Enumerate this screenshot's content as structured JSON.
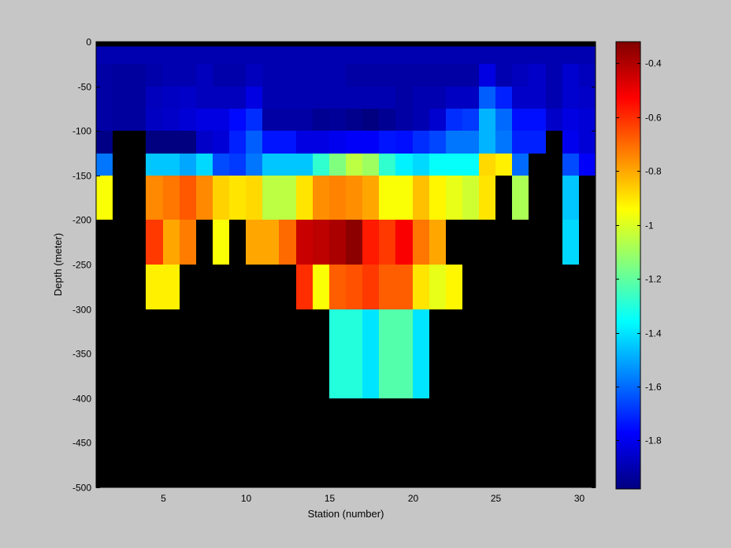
{
  "chart_data": [
    {
      "type": "heatmap",
      "title": "",
      "xlabel": "Station (number)",
      "ylabel": "Depth (meter)",
      "xlim": [
        1,
        31
      ],
      "ylim": [
        -500,
        0
      ],
      "xticks": [
        5,
        10,
        15,
        20,
        25,
        30
      ],
      "yticks": [
        0,
        -50,
        -100,
        -150,
        -200,
        -250,
        -300,
        -350,
        -400,
        -450,
        -500
      ],
      "x_start": 1,
      "x_step": 1,
      "depth_bins": [
        [
          0,
          -5
        ],
        [
          -5,
          -25
        ],
        [
          -25,
          -50
        ],
        [
          -50,
          -75
        ],
        [
          -75,
          -100
        ],
        [
          -100,
          -125
        ],
        [
          -125,
          -150
        ],
        [
          -150,
          -200
        ],
        [
          -200,
          -250
        ],
        [
          -250,
          -300
        ],
        [
          -300,
          -400
        ],
        [
          -400,
          -500
        ]
      ],
      "nodata_color": "#000000",
      "colorbar": {
        "colormap": "jet",
        "range": [
          -1.98,
          -0.32
        ],
        "ticks": [
          -0.4,
          -0.6,
          -0.8,
          -1,
          -1.2,
          -1.4,
          -1.6,
          -1.8
        ]
      },
      "values": [
        [
          null,
          null,
          null,
          null,
          null,
          null,
          null,
          null,
          null,
          null,
          null,
          null,
          null,
          null,
          null,
          null,
          null,
          null,
          null,
          null,
          null,
          null,
          null,
          null,
          null,
          null,
          null,
          null,
          null,
          null
        ],
        [
          -1.9,
          -1.9,
          -1.9,
          -1.9,
          -1.9,
          -1.9,
          -1.9,
          -1.9,
          -1.9,
          -1.9,
          -1.9,
          -1.9,
          -1.9,
          -1.9,
          -1.9,
          -1.9,
          -1.9,
          -1.9,
          -1.9,
          -1.9,
          -1.9,
          -1.9,
          -1.9,
          -1.9,
          -1.9,
          -1.9,
          -1.9,
          -1.9,
          -1.9,
          -1.9
        ],
        [
          -1.92,
          -1.93,
          -1.93,
          -1.91,
          -1.9,
          -1.9,
          -1.88,
          -1.91,
          -1.91,
          -1.88,
          -1.9,
          -1.9,
          -1.9,
          -1.9,
          -1.9,
          -1.92,
          -1.92,
          -1.92,
          -1.92,
          -1.92,
          -1.92,
          -1.92,
          -1.92,
          -1.82,
          -1.9,
          -1.88,
          -1.86,
          -1.9,
          -1.85,
          -1.88
        ],
        [
          -1.92,
          -1.93,
          -1.93,
          -1.88,
          -1.87,
          -1.86,
          -1.88,
          -1.88,
          -1.88,
          -1.82,
          -1.9,
          -1.9,
          -1.9,
          -1.9,
          -1.9,
          -1.9,
          -1.9,
          -1.9,
          -1.92,
          -1.9,
          -1.9,
          -1.87,
          -1.87,
          -1.62,
          -1.72,
          -1.86,
          -1.86,
          -1.9,
          -1.85,
          -1.86
        ],
        [
          -1.92,
          -1.93,
          -1.93,
          -1.87,
          -1.86,
          -1.84,
          -1.82,
          -1.82,
          -1.76,
          -1.7,
          -1.92,
          -1.92,
          -1.92,
          -1.95,
          -1.94,
          -1.96,
          -1.98,
          -1.95,
          -1.92,
          -1.9,
          -1.85,
          -1.7,
          -1.68,
          -1.48,
          -1.6,
          -1.75,
          -1.75,
          -1.86,
          -1.82,
          -1.84
        ],
        [
          -1.97,
          null,
          null,
          -1.98,
          -1.98,
          -1.98,
          -1.86,
          -1.84,
          -1.72,
          -1.62,
          -1.74,
          -1.74,
          -1.82,
          -1.82,
          -1.8,
          -1.78,
          -1.78,
          -1.74,
          -1.75,
          -1.7,
          -1.66,
          -1.58,
          -1.58,
          -1.48,
          -1.58,
          -1.72,
          -1.72,
          null,
          -1.8,
          -1.84
        ],
        [
          -1.58,
          null,
          null,
          -1.45,
          -1.45,
          -1.5,
          -1.42,
          -1.65,
          -1.68,
          -1.58,
          -1.45,
          -1.45,
          -1.45,
          -1.28,
          -1.15,
          -1.05,
          -1.1,
          -1.28,
          -1.38,
          -1.42,
          -1.35,
          -1.35,
          -1.35,
          -0.88,
          -0.92,
          -1.6,
          null,
          null,
          -1.65,
          -1.78
        ],
        [
          -0.95,
          null,
          null,
          -0.75,
          -0.72,
          -0.67,
          -0.75,
          -0.87,
          -0.9,
          -0.88,
          -1.05,
          -1.05,
          -0.9,
          -0.76,
          -0.74,
          -0.76,
          -0.8,
          -0.95,
          -0.95,
          -0.84,
          -0.93,
          -0.98,
          -1.02,
          -0.9,
          null,
          -1.08,
          null,
          null,
          -1.45,
          null
        ],
        [
          null,
          null,
          null,
          -0.62,
          -0.8,
          -0.73,
          null,
          -0.95,
          null,
          -0.8,
          -0.8,
          -0.7,
          -0.44,
          -0.42,
          -0.39,
          -0.34,
          -0.57,
          -0.62,
          -0.52,
          -0.72,
          -0.8,
          null,
          null,
          null,
          null,
          null,
          null,
          null,
          -1.42,
          null
        ],
        [
          null,
          null,
          null,
          -0.92,
          -0.92,
          null,
          null,
          null,
          null,
          null,
          null,
          null,
          -0.6,
          -0.95,
          -0.68,
          -0.66,
          -0.62,
          -0.68,
          -0.68,
          -0.9,
          -0.98,
          -0.93,
          null,
          null,
          null,
          null,
          null,
          null,
          null,
          null
        ],
        [
          null,
          null,
          null,
          null,
          null,
          null,
          null,
          null,
          null,
          null,
          null,
          null,
          null,
          null,
          -1.3,
          -1.3,
          -1.4,
          -1.22,
          -1.22,
          -1.4,
          null,
          null,
          null,
          null,
          null,
          null,
          null,
          null,
          null,
          null
        ],
        [
          null,
          null,
          null,
          null,
          null,
          null,
          null,
          null,
          null,
          null,
          null,
          null,
          null,
          null,
          null,
          null,
          null,
          null,
          null,
          null,
          null,
          null,
          null,
          null,
          null,
          null,
          null,
          null,
          null,
          null
        ]
      ]
    }
  ]
}
